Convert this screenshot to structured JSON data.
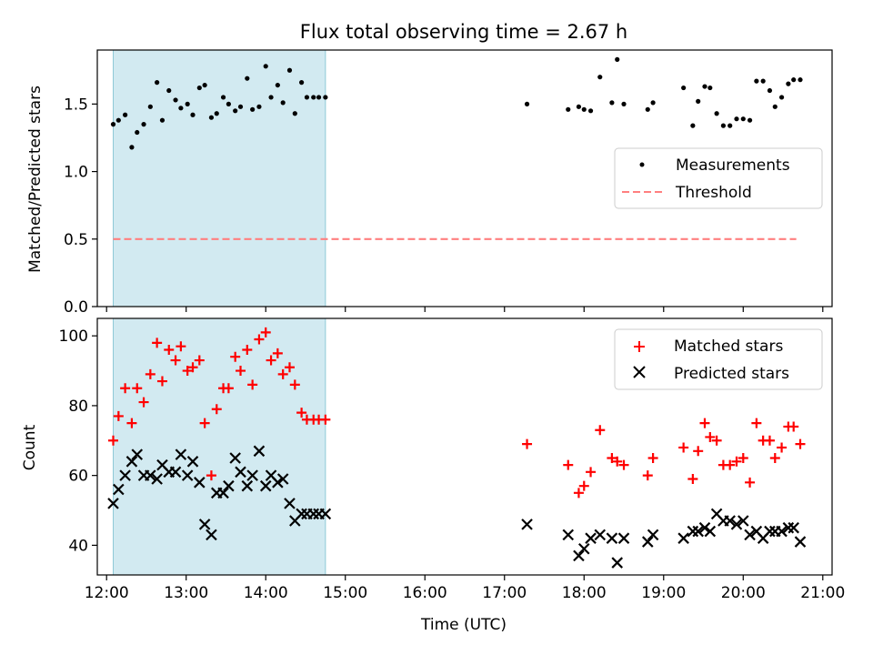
{
  "title": "Flux total observing time = 2.67 h",
  "colors": {
    "shade": "#add8e6",
    "measurement": "#000000",
    "threshold": "#ff7f7f",
    "matched": "#ff0000",
    "predicted": "#000000"
  },
  "chart_data": [
    {
      "type": "scatter",
      "ylabel": "Matched/Predicted stars",
      "xlim": [
        "11:53",
        "21:07"
      ],
      "ylim": [
        0.0,
        1.9
      ],
      "yticks": [
        "0.0",
        "0.5",
        "1.0",
        "1.5"
      ],
      "legend_position": "center-right",
      "shaded_interval": [
        "12:05",
        "14:45"
      ],
      "series": [
        {
          "name": "Measurements",
          "marker": "dot",
          "x": [
            "12:05",
            "12:09",
            "12:14",
            "12:19",
            "12:23",
            "12:28",
            "12:33",
            "12:38",
            "12:42",
            "12:47",
            "12:52",
            "12:56",
            "13:01",
            "13:05",
            "13:10",
            "13:14",
            "13:19",
            "13:23",
            "13:28",
            "13:32",
            "13:37",
            "13:41",
            "13:46",
            "13:50",
            "13:55",
            "14:00",
            "14:04",
            "14:09",
            "14:13",
            "14:18",
            "14:22",
            "14:27",
            "14:31",
            "14:36",
            "14:40",
            "14:45",
            "17:17",
            "17:48",
            "17:56",
            "18:00",
            "18:05",
            "18:12",
            "18:21",
            "18:25",
            "18:30",
            "18:48",
            "18:52",
            "19:15",
            "19:22",
            "19:26",
            "19:31",
            "19:35",
            "19:40",
            "19:45",
            "19:50",
            "19:55",
            "20:00",
            "20:05",
            "20:10",
            "20:15",
            "20:20",
            "20:24",
            "20:29",
            "20:34",
            "20:38",
            "20:43"
          ],
          "y": [
            1.35,
            1.38,
            1.42,
            1.18,
            1.29,
            1.35,
            1.48,
            1.66,
            1.38,
            1.6,
            1.53,
            1.47,
            1.5,
            1.42,
            1.62,
            1.64,
            1.4,
            1.43,
            1.55,
            1.5,
            1.45,
            1.48,
            1.69,
            1.46,
            1.48,
            1.78,
            1.55,
            1.64,
            1.51,
            1.75,
            1.43,
            1.66,
            1.55,
            1.55,
            1.55,
            1.55,
            1.5,
            1.46,
            1.48,
            1.46,
            1.45,
            1.7,
            1.51,
            1.83,
            1.5,
            1.46,
            1.51,
            1.62,
            1.34,
            1.52,
            1.63,
            1.62,
            1.43,
            1.34,
            1.34,
            1.39,
            1.39,
            1.38,
            1.67,
            1.67,
            1.6,
            1.48,
            1.55,
            1.65,
            1.68,
            1.68
          ]
        },
        {
          "name": "Threshold",
          "marker": "dashed-line",
          "x": [
            "12:05",
            "20:40"
          ],
          "y": [
            0.5,
            0.5
          ]
        }
      ]
    },
    {
      "type": "scatter",
      "xlabel": "Time (UTC)",
      "ylabel": "Count",
      "xlim": [
        "11:53",
        "21:07"
      ],
      "ylim": [
        31.5,
        105
      ],
      "yticks": [
        "40",
        "60",
        "80",
        "100"
      ],
      "xticks": [
        "12:00",
        "13:00",
        "14:00",
        "15:00",
        "16:00",
        "17:00",
        "18:00",
        "19:00",
        "20:00",
        "21:00"
      ],
      "legend_position": "top-right",
      "shaded_interval": [
        "12:05",
        "14:45"
      ],
      "series": [
        {
          "name": "Matched stars",
          "marker": "plus",
          "x": [
            "12:05",
            "12:09",
            "12:14",
            "12:19",
            "12:23",
            "12:28",
            "12:33",
            "12:38",
            "12:42",
            "12:47",
            "12:52",
            "12:56",
            "13:01",
            "13:05",
            "13:10",
            "13:14",
            "13:19",
            "13:23",
            "13:28",
            "13:32",
            "13:37",
            "13:41",
            "13:46",
            "13:50",
            "13:55",
            "14:00",
            "14:04",
            "14:09",
            "14:13",
            "14:18",
            "14:22",
            "14:27",
            "14:31",
            "14:36",
            "14:40",
            "14:45",
            "17:17",
            "17:48",
            "17:56",
            "18:00",
            "18:05",
            "18:12",
            "18:21",
            "18:25",
            "18:30",
            "18:48",
            "18:52",
            "19:15",
            "19:22",
            "19:26",
            "19:31",
            "19:35",
            "19:40",
            "19:45",
            "19:50",
            "19:55",
            "20:00",
            "20:05",
            "20:10",
            "20:15",
            "20:20",
            "20:24",
            "20:29",
            "20:34",
            "20:38",
            "20:43"
          ],
          "y": [
            70,
            77,
            85,
            75,
            85,
            81,
            89,
            98,
            87,
            96,
            93,
            97,
            90,
            91,
            93,
            75,
            60,
            79,
            85,
            85,
            94,
            90,
            96,
            86,
            99,
            101,
            93,
            95,
            89,
            91,
            86,
            78,
            76,
            76,
            76,
            76,
            69,
            63,
            55,
            57,
            61,
            73,
            65,
            64,
            63,
            60,
            65,
            68,
            59,
            67,
            75,
            71,
            70,
            63,
            63,
            64,
            65,
            58,
            75,
            70,
            70,
            65,
            68,
            74,
            74,
            69
          ]
        },
        {
          "name": "Predicted stars",
          "marker": "x",
          "x": [
            "12:05",
            "12:09",
            "12:14",
            "12:19",
            "12:23",
            "12:28",
            "12:33",
            "12:38",
            "12:42",
            "12:47",
            "12:52",
            "12:56",
            "13:01",
            "13:05",
            "13:10",
            "13:14",
            "13:19",
            "13:23",
            "13:28",
            "13:32",
            "13:37",
            "13:41",
            "13:46",
            "13:50",
            "13:55",
            "14:00",
            "14:04",
            "14:09",
            "14:13",
            "14:18",
            "14:22",
            "14:27",
            "14:31",
            "14:36",
            "14:40",
            "14:45",
            "17:17",
            "17:48",
            "17:56",
            "18:00",
            "18:05",
            "18:12",
            "18:21",
            "18:25",
            "18:30",
            "18:48",
            "18:52",
            "19:15",
            "19:22",
            "19:26",
            "19:31",
            "19:35",
            "19:40",
            "19:45",
            "19:50",
            "19:55",
            "20:00",
            "20:05",
            "20:10",
            "20:15",
            "20:20",
            "20:24",
            "20:29",
            "20:34",
            "20:38",
            "20:43"
          ],
          "y": [
            52,
            56,
            60,
            64,
            66,
            60,
            60,
            59,
            63,
            61,
            61,
            66,
            60,
            64,
            58,
            46,
            43,
            55,
            55,
            57,
            65,
            61,
            57,
            60,
            67,
            57,
            60,
            58,
            59,
            52,
            47,
            49,
            49,
            49,
            49,
            49,
            46,
            43,
            37,
            39,
            42,
            43,
            42,
            35,
            42,
            41,
            43,
            42,
            44,
            44,
            45,
            44,
            49,
            47,
            47,
            46,
            47,
            43,
            44,
            42,
            44,
            44,
            44,
            45,
            45,
            41
          ]
        }
      ]
    }
  ]
}
